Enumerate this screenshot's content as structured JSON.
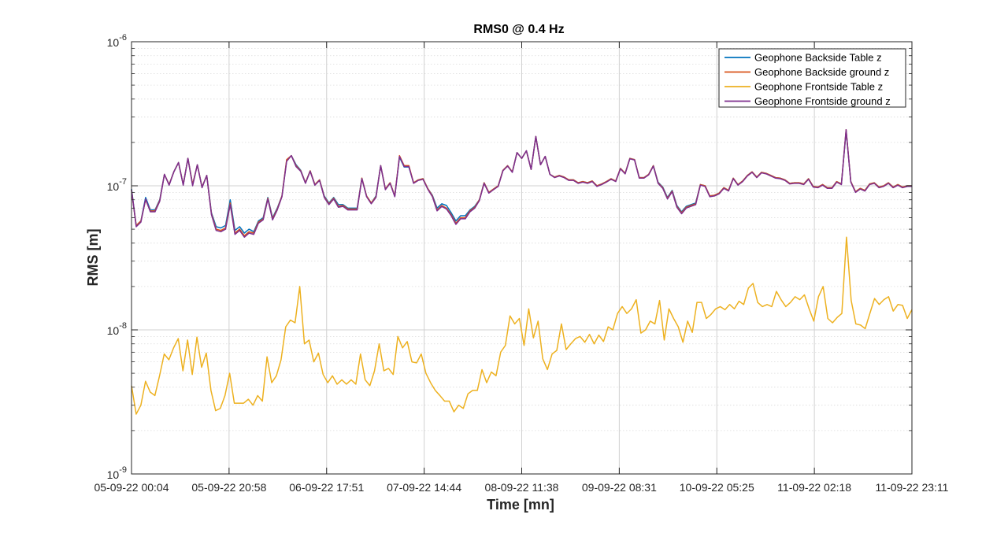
{
  "chart_data": {
    "type": "line",
    "title": "RMS0 @ 0.4 Hz",
    "xlabel": "Time [mn]",
    "ylabel": "RMS [m]",
    "yscale": "log",
    "ylim": [
      1e-09,
      1e-06
    ],
    "y_ticks": [
      {
        "value": 1e-09,
        "base": "10",
        "exp": "-9"
      },
      {
        "value": 1e-08,
        "base": "10",
        "exp": "-8"
      },
      {
        "value": 1e-07,
        "base": "10",
        "exp": "-7"
      },
      {
        "value": 1e-06,
        "base": "10",
        "exp": "-6"
      }
    ],
    "x_tick_labels": [
      "05-09-22 00:04",
      "05-09-22 20:58",
      "06-09-22 17:51",
      "07-09-22 14:44",
      "08-09-22 11:38",
      "09-09-22 08:31",
      "10-09-22 05:25",
      "11-09-22 02:18",
      "11-09-22 23:11"
    ],
    "x_tick_positions": [
      0,
      20,
      40,
      60,
      80,
      100,
      120,
      140,
      160
    ],
    "grid": true,
    "legend_position": "top-right",
    "series": [
      {
        "name": "Geophone Backside Table z",
        "color": "#0072BD",
        "values": [
          9.5e-08,
          5.3e-08,
          5.7e-08,
          8.3e-08,
          6.8e-08,
          6.8e-08,
          8e-08,
          1.2e-07,
          1.02e-07,
          1.25e-07,
          1.45e-07,
          1.02e-07,
          1.55e-07,
          1.02e-07,
          1.4e-07,
          9.8e-08,
          1.18e-07,
          6.5e-08,
          5.2e-08,
          5.1e-08,
          5.3e-08,
          8e-08,
          4.9e-08,
          5.2e-08,
          4.7e-08,
          5e-08,
          4.8e-08,
          5.7e-08,
          6e-08,
          8.3e-08,
          6e-08,
          7e-08,
          8.5e-08,
          1.5e-07,
          1.62e-07,
          1.4e-07,
          1.28e-07,
          1.05e-07,
          1.27e-07,
          1.02e-07,
          1.1e-07,
          8.5e-08,
          7.6e-08,
          8.3e-08,
          7.4e-08,
          7.4e-08,
          7e-08,
          7e-08,
          7e-08,
          1.13e-07,
          8.5e-08,
          7.6e-08,
          8.5e-08,
          1.38e-07,
          9.5e-08,
          1.05e-07,
          8.5e-08,
          1.58e-07,
          1.35e-07,
          1.35e-07,
          1.05e-07,
          1.1e-07,
          1.12e-07,
          9.6e-08,
          8.6e-08,
          7e-08,
          7.5e-08,
          7.3e-08,
          6.5e-08,
          5.7e-08,
          6.2e-08,
          6.2e-08,
          6.8e-08,
          7.2e-08,
          8e-08,
          1.05e-07,
          9e-08,
          9.5e-08,
          1e-07,
          1.28e-07,
          1.38e-07,
          1.25e-07,
          1.7e-07,
          1.55e-07,
          1.75e-07,
          1.3e-07,
          2.2e-07,
          1.4e-07,
          1.6e-07,
          1.2e-07,
          1.15e-07,
          1.18e-07,
          1.15e-07,
          1.1e-07,
          1.1e-07,
          1.05e-07,
          1.07e-07,
          1.05e-07,
          1.08e-07,
          1e-07,
          1.03e-07,
          1.07e-07,
          1.12e-07,
          1.08e-07,
          1.32e-07,
          1.22e-07,
          1.55e-07,
          1.52e-07,
          1.14e-07,
          1.14e-07,
          1.2e-07,
          1.38e-07,
          1.06e-07,
          9.8e-08,
          8.3e-08,
          9.3e-08,
          7.3e-08,
          6.6e-08,
          7.2e-08,
          7.4e-08,
          7.6e-08,
          1.02e-07,
          1e-07,
          8.5e-08,
          8.6e-08,
          8.9e-08,
          9.7e-08,
          9.3e-08,
          1.13e-07,
          1.02e-07,
          1.08e-07,
          1.18e-07,
          1.25e-07,
          1.15e-07,
          1.24e-07,
          1.22e-07,
          1.18e-07,
          1.14e-07,
          1.13e-07,
          1.1e-07,
          1.04e-07,
          1.05e-07,
          1.05e-07,
          1.03e-07,
          1.12e-07,
          9.9e-08,
          9.8e-08,
          1.02e-07,
          9.7e-08,
          9.7e-08,
          1.07e-07,
          1.03e-07,
          2.4e-07,
          1.07e-07,
          9.1e-08,
          9.6e-08,
          9.3e-08,
          1.03e-07,
          1.05e-07,
          9.8e-08,
          1e-07,
          1.05e-07,
          9.8e-08,
          1.02e-07,
          9.8e-08,
          1e-07,
          1e-07
        ]
      },
      {
        "name": "Geophone Backside ground z",
        "color": "#D95319",
        "values": [
          9.3e-08,
          5.3e-08,
          5.7e-08,
          8e-08,
          6.7e-08,
          6.7e-08,
          7.9e-08,
          1.2e-07,
          1.02e-07,
          1.25e-07,
          1.45e-07,
          1.02e-07,
          1.55e-07,
          1.02e-07,
          1.4e-07,
          9.8e-08,
          1.18e-07,
          6.4e-08,
          5e-08,
          4.9e-08,
          5.1e-08,
          7.6e-08,
          4.7e-08,
          5e-08,
          4.5e-08,
          4.8e-08,
          4.7e-08,
          5.6e-08,
          5.9e-08,
          8.2e-08,
          5.9e-08,
          6.9e-08,
          8.5e-08,
          1.52e-07,
          1.62e-07,
          1.38e-07,
          1.27e-07,
          1.05e-07,
          1.27e-07,
          1.02e-07,
          1.1e-07,
          8.4e-08,
          7.5e-08,
          8.2e-08,
          7.2e-08,
          7.3e-08,
          6.9e-08,
          6.9e-08,
          6.9e-08,
          1.13e-07,
          8.5e-08,
          7.6e-08,
          8.4e-08,
          1.38e-07,
          9.5e-08,
          1.05e-07,
          8.5e-08,
          1.62e-07,
          1.38e-07,
          1.38e-07,
          1.05e-07,
          1.1e-07,
          1.12e-07,
          9.6e-08,
          8.5e-08,
          6.8e-08,
          7.3e-08,
          7e-08,
          6.3e-08,
          5.5e-08,
          6e-08,
          6e-08,
          6.7e-08,
          7.1e-08,
          8e-08,
          1.05e-07,
          9e-08,
          9.5e-08,
          1e-07,
          1.28e-07,
          1.38e-07,
          1.25e-07,
          1.7e-07,
          1.55e-07,
          1.75e-07,
          1.3e-07,
          2.2e-07,
          1.4e-07,
          1.6e-07,
          1.2e-07,
          1.15e-07,
          1.18e-07,
          1.15e-07,
          1.1e-07,
          1.1e-07,
          1.05e-07,
          1.07e-07,
          1.05e-07,
          1.08e-07,
          1e-07,
          1.03e-07,
          1.07e-07,
          1.12e-07,
          1.08e-07,
          1.32e-07,
          1.22e-07,
          1.55e-07,
          1.52e-07,
          1.14e-07,
          1.14e-07,
          1.2e-07,
          1.38e-07,
          1.05e-07,
          9.7e-08,
          8.2e-08,
          9.2e-08,
          7.2e-08,
          6.5e-08,
          7.1e-08,
          7.3e-08,
          7.5e-08,
          1.02e-07,
          1e-07,
          8.5e-08,
          8.6e-08,
          8.9e-08,
          9.7e-08,
          9.3e-08,
          1.13e-07,
          1.02e-07,
          1.08e-07,
          1.18e-07,
          1.25e-07,
          1.15e-07,
          1.24e-07,
          1.22e-07,
          1.18e-07,
          1.14e-07,
          1.13e-07,
          1.1e-07,
          1.04e-07,
          1.05e-07,
          1.05e-07,
          1.03e-07,
          1.12e-07,
          9.9e-08,
          9.8e-08,
          1.02e-07,
          9.7e-08,
          9.7e-08,
          1.07e-07,
          1.03e-07,
          2.45e-07,
          1.07e-07,
          9.1e-08,
          9.6e-08,
          9.3e-08,
          1.03e-07,
          1.05e-07,
          9.8e-08,
          1e-07,
          1.05e-07,
          9.8e-08,
          1.02e-07,
          9.8e-08,
          1e-07,
          1e-07
        ]
      },
      {
        "name": "Geophone Frontside Table z",
        "color": "#EDB120",
        "values": [
          4.1e-09,
          2.6e-09,
          3e-09,
          4.4e-09,
          3.7e-09,
          3.5e-09,
          4.8e-09,
          6.8e-09,
          6.2e-09,
          7.5e-09,
          8.7e-09,
          5.2e-09,
          8.5e-09,
          4.9e-09,
          8.9e-09,
          5.5e-09,
          6.9e-09,
          3.8e-09,
          2.75e-09,
          2.85e-09,
          3.5e-09,
          5e-09,
          3.1e-09,
          3.1e-09,
          3.1e-09,
          3.3e-09,
          3e-09,
          3.5e-09,
          3.2e-09,
          6.5e-09,
          4.3e-09,
          4.8e-09,
          6.2e-09,
          1.05e-08,
          1.17e-08,
          1.12e-08,
          2e-08,
          8e-09,
          8.5e-09,
          6e-09,
          6.9e-09,
          4.9e-09,
          4.3e-09,
          4.8e-09,
          4.2e-09,
          4.5e-09,
          4.2e-09,
          4.5e-09,
          4.2e-09,
          6.8e-09,
          4.5e-09,
          4.1e-09,
          5.2e-09,
          8e-09,
          5.2e-09,
          5.4e-09,
          4.9e-09,
          9e-09,
          7.5e-09,
          8.3e-09,
          6e-09,
          5.9e-09,
          6.8e-09,
          5e-09,
          4.3e-09,
          3.8e-09,
          3.5e-09,
          3.2e-09,
          3.2e-09,
          2.7e-09,
          3e-09,
          2.85e-09,
          3.6e-09,
          3.8e-09,
          3.8e-09,
          5.3e-09,
          4.3e-09,
          5.1e-09,
          4.8e-09,
          7e-09,
          7.8e-09,
          1.25e-08,
          1.1e-08,
          1.2e-08,
          7.8e-09,
          1.4e-08,
          8.8e-09,
          1.15e-08,
          6.3e-09,
          5.3e-09,
          6.8e-09,
          7.2e-09,
          1.1e-08,
          7.3e-09,
          8e-09,
          8.7e-09,
          9e-09,
          8.2e-09,
          9.3e-09,
          8e-09,
          9.2e-09,
          8.3e-09,
          1.05e-08,
          1e-08,
          1.3e-08,
          1.45e-08,
          1.3e-08,
          1.4e-08,
          1.62e-08,
          9.5e-09,
          1e-08,
          1.15e-08,
          1.1e-08,
          1.6e-08,
          8.5e-09,
          1.4e-08,
          1.2e-08,
          1.05e-08,
          8.2e-09,
          1.15e-08,
          9.6e-09,
          1.55e-08,
          1.55e-08,
          1.2e-08,
          1.28e-08,
          1.4e-08,
          1.45e-08,
          1.38e-08,
          1.5e-08,
          1.4e-08,
          1.58e-08,
          1.5e-08,
          1.95e-08,
          2.1e-08,
          1.55e-08,
          1.45e-08,
          1.5e-08,
          1.45e-08,
          1.85e-08,
          1.62e-08,
          1.45e-08,
          1.55e-08,
          1.7e-08,
          1.62e-08,
          1.75e-08,
          1.4e-08,
          1.15e-08,
          1.7e-08,
          2e-08,
          1.2e-08,
          1.12e-08,
          1.22e-08,
          1.3e-08,
          4.4e-08,
          1.6e-08,
          1.1e-08,
          1.08e-08,
          1.02e-08,
          1.3e-08,
          1.65e-08,
          1.5e-08,
          1.62e-08,
          1.7e-08,
          1.35e-08,
          1.5e-08,
          1.48e-08,
          1.2e-08,
          1.38e-08
        ]
      },
      {
        "name": "Geophone Frontside ground z",
        "color": "#7E2F8E",
        "values": [
          9.4e-08,
          5.2e-08,
          5.6e-08,
          8.1e-08,
          6.6e-08,
          6.6e-08,
          7.8e-08,
          1.2e-07,
          1.01e-07,
          1.25e-07,
          1.45e-07,
          1.01e-07,
          1.55e-07,
          1e-07,
          1.4e-07,
          9.7e-08,
          1.18e-07,
          6.3e-08,
          4.9e-08,
          4.8e-08,
          5e-08,
          7.4e-08,
          4.6e-08,
          4.9e-08,
          4.4e-08,
          4.7e-08,
          4.6e-08,
          5.5e-08,
          5.8e-08,
          8.1e-08,
          5.8e-08,
          6.8e-08,
          8.4e-08,
          1.48e-07,
          1.62e-07,
          1.36e-07,
          1.26e-07,
          1.04e-07,
          1.26e-07,
          1.01e-07,
          1.09e-07,
          8.3e-08,
          7.4e-08,
          8.1e-08,
          7.1e-08,
          7.2e-08,
          6.8e-08,
          6.8e-08,
          6.8e-08,
          1.12e-07,
          8.4e-08,
          7.5e-08,
          8.3e-08,
          1.38e-07,
          9.4e-08,
          1.04e-07,
          8.4e-08,
          1.6e-07,
          1.36e-07,
          1.36e-07,
          1.04e-07,
          1.09e-07,
          1.11e-07,
          9.5e-08,
          8.4e-08,
          6.7e-08,
          7.2e-08,
          6.9e-08,
          6.2e-08,
          5.4e-08,
          5.9e-08,
          5.9e-08,
          6.6e-08,
          7e-08,
          7.9e-08,
          1.04e-07,
          8.9e-08,
          9.4e-08,
          9.9e-08,
          1.27e-07,
          1.37e-07,
          1.24e-07,
          1.7e-07,
          1.55e-07,
          1.75e-07,
          1.3e-07,
          2.2e-07,
          1.4e-07,
          1.6e-07,
          1.2e-07,
          1.14e-07,
          1.17e-07,
          1.14e-07,
          1.09e-07,
          1.09e-07,
          1.04e-07,
          1.06e-07,
          1.04e-07,
          1.07e-07,
          9.9e-08,
          1.02e-07,
          1.06e-07,
          1.11e-07,
          1.07e-07,
          1.31e-07,
          1.21e-07,
          1.54e-07,
          1.51e-07,
          1.13e-07,
          1.13e-07,
          1.19e-07,
          1.37e-07,
          1.04e-07,
          9.6e-08,
          8.1e-08,
          9.1e-08,
          7.1e-08,
          6.4e-08,
          7e-08,
          7.2e-08,
          7.4e-08,
          1.01e-07,
          9.9e-08,
          8.4e-08,
          8.5e-08,
          8.8e-08,
          9.6e-08,
          9.2e-08,
          1.12e-07,
          1.01e-07,
          1.07e-07,
          1.17e-07,
          1.24e-07,
          1.14e-07,
          1.23e-07,
          1.21e-07,
          1.17e-07,
          1.13e-07,
          1.12e-07,
          1.09e-07,
          1.03e-07,
          1.04e-07,
          1.04e-07,
          1.02e-07,
          1.11e-07,
          9.8e-08,
          9.7e-08,
          1.01e-07,
          9.6e-08,
          9.6e-08,
          1.06e-07,
          1.02e-07,
          2.45e-07,
          1.06e-07,
          9e-08,
          9.5e-08,
          9.2e-08,
          1.02e-07,
          1.04e-07,
          9.7e-08,
          9.9e-08,
          1.04e-07,
          9.7e-08,
          1.01e-07,
          9.7e-08,
          9.9e-08,
          9.9e-08
        ]
      }
    ]
  }
}
